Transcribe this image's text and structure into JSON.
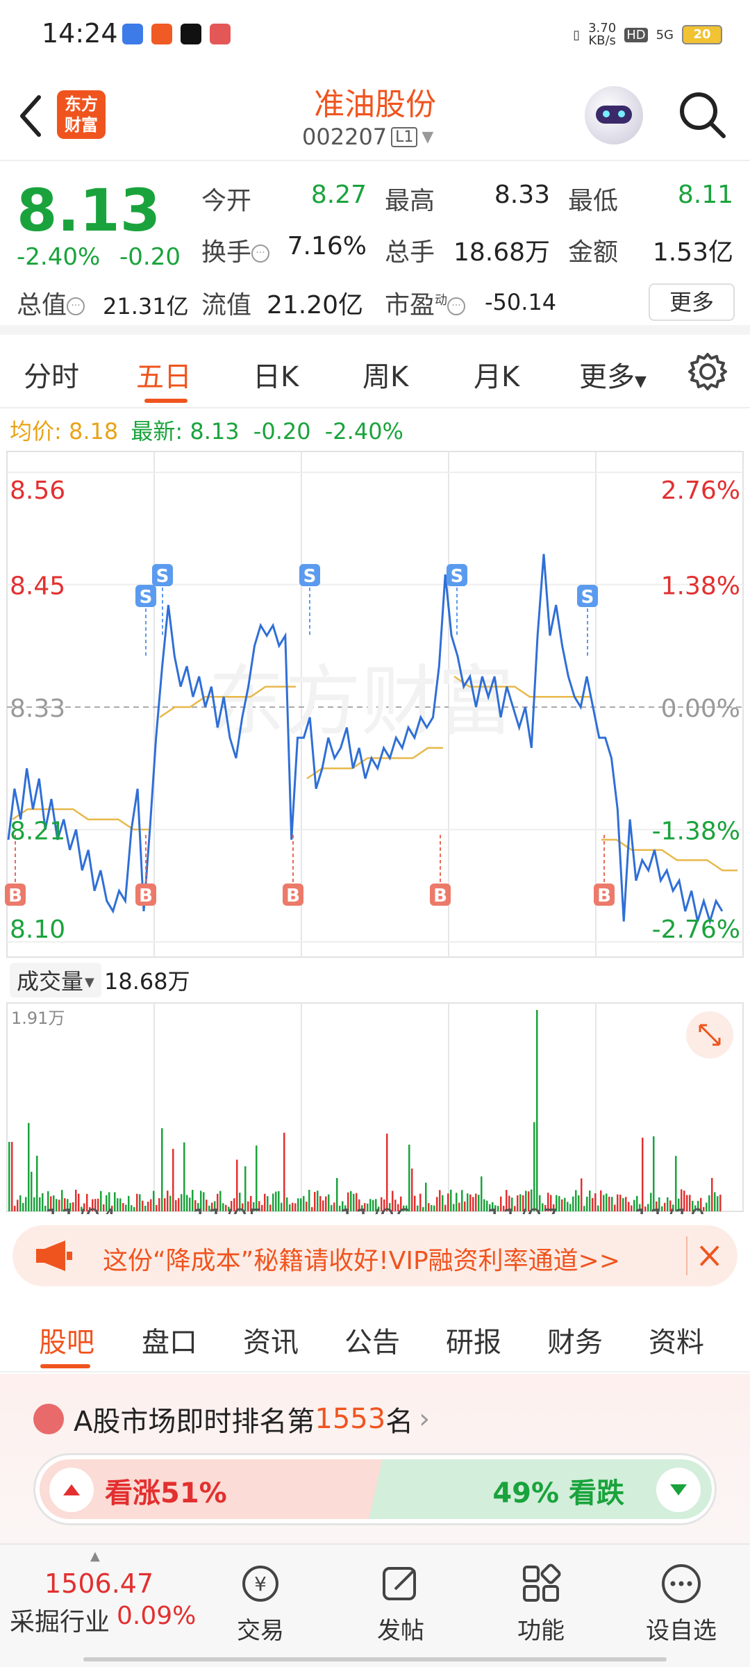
{
  "status_bar": {
    "time": "14:24",
    "net_speed_top": "3.70",
    "net_speed_bottom": "KB/s",
    "hd": "HD",
    "signal": "5G",
    "battery": "20"
  },
  "header": {
    "logo_line1": "东方",
    "logo_line2": "财富",
    "name": "准油股份",
    "code": "002207",
    "level": "L1"
  },
  "quote": {
    "price": "8.13",
    "change_pct": "-2.40%",
    "change_val": "-0.20",
    "open_label": "今开",
    "open": "8.27",
    "high_label": "最高",
    "high": "8.33",
    "low_label": "最低",
    "low": "8.11",
    "turnover_label": "换手",
    "turnover": "7.16%",
    "volume_label": "总手",
    "volume": "18.68万",
    "amount_label": "金额",
    "amount": "1.53亿",
    "mktcap_label": "总值",
    "mktcap": "21.31亿",
    "float_label": "流值",
    "float": "21.20亿",
    "pe_label": "市盈",
    "pe_sup": "动",
    "pe": "-50.14",
    "more": "更多"
  },
  "tabs": {
    "items": [
      "分时",
      "五日",
      "日K",
      "周K",
      "月K",
      "更多"
    ],
    "active": 1
  },
  "avg_line": {
    "avg_label": "均价:",
    "avg": "8.18",
    "latest_label": "最新:",
    "latest": "8.13",
    "change": "-0.20",
    "pct": "-2.40%"
  },
  "chart_data": {
    "type": "line",
    "y_left_ticks": [
      "8.56",
      "8.45",
      "8.33",
      "8.21",
      "8.10"
    ],
    "y_right_ticks": [
      "2.76%",
      "1.38%",
      "0.00%",
      "-1.38%",
      "-2.76%"
    ],
    "ylim": [
      8.1,
      8.56
    ],
    "prev_close": 8.33,
    "days": [
      "11/04",
      "11/05",
      "11/06",
      "11/07",
      "11/10"
    ],
    "watermark": "东方财富",
    "series": [
      {
        "values": [
          8.2,
          8.25,
          8.22,
          8.27,
          8.23,
          8.26,
          8.21,
          8.24,
          8.2,
          8.22,
          8.19,
          8.21,
          8.17,
          8.19,
          8.15,
          8.17,
          8.14,
          8.13,
          8.15,
          8.14,
          8.21,
          8.25,
          8.13,
          8.21,
          8.3,
          8.37,
          8.43,
          8.38,
          8.35,
          8.37,
          8.34,
          8.36,
          8.33,
          8.35,
          8.31,
          8.34,
          8.3,
          8.28,
          8.32,
          8.35,
          8.39,
          8.41,
          8.4,
          8.41,
          8.39,
          8.4,
          8.2,
          8.3,
          8.3,
          8.32,
          8.25,
          8.27,
          8.3,
          8.28,
          8.29,
          8.31,
          8.27,
          8.29,
          8.26,
          8.28,
          8.27,
          8.29,
          8.28,
          8.3,
          8.29,
          8.31,
          8.3,
          8.32,
          8.31,
          8.32,
          8.37,
          8.46,
          8.4,
          8.38,
          8.35,
          8.36,
          8.33,
          8.36,
          8.34,
          8.36,
          8.32,
          8.35,
          8.33,
          8.31,
          8.33,
          8.29,
          8.4,
          8.48,
          8.4,
          8.43,
          8.39,
          8.36,
          8.34,
          8.33,
          8.36,
          8.33,
          8.3,
          8.3,
          8.28,
          8.23,
          8.12,
          8.22,
          8.16,
          8.18,
          8.17,
          8.19,
          8.16,
          8.17,
          8.15,
          8.16,
          8.13,
          8.15,
          8.12,
          8.14,
          8.12,
          8.14,
          8.13
        ]
      },
      {
        "values": [
          8.22,
          8.23,
          8.23,
          8.23,
          8.23,
          8.22,
          8.22,
          8.22,
          8.21,
          8.21,
          8.32,
          8.33,
          8.33,
          8.34,
          8.34,
          8.34,
          8.34,
          8.35,
          8.35,
          8.35,
          8.26,
          8.27,
          8.27,
          8.27,
          8.28,
          8.28,
          8.28,
          8.28,
          8.29,
          8.29,
          8.36,
          8.35,
          8.35,
          8.35,
          8.35,
          8.34,
          8.34,
          8.34,
          8.34,
          8.34,
          8.2,
          8.2,
          8.19,
          8.19,
          8.19,
          8.18,
          8.18,
          8.18,
          8.17,
          8.17
        ]
      }
    ],
    "markers": [
      {
        "type": "B",
        "day": 0
      },
      {
        "type": "S",
        "day": 0
      },
      {
        "type": "B",
        "day": 0
      },
      {
        "type": "S",
        "day": 1
      },
      {
        "type": "B",
        "day": 1
      },
      {
        "type": "S",
        "day": 2
      },
      {
        "type": "B",
        "day": 2
      },
      {
        "type": "S",
        "day": 3
      },
      {
        "type": "S",
        "day": 3
      },
      {
        "type": "B",
        "day": 4
      }
    ],
    "volume_label": "成交量",
    "volume_total": "18.68万",
    "volume_max": "1.91万"
  },
  "ad": {
    "text": "这份“降成本”秘籍请收好!VIP融资利率通道>>"
  },
  "subtabs": {
    "items": [
      "股吧",
      "盘口",
      "资讯",
      "公告",
      "研报",
      "财务",
      "资料"
    ],
    "active": 0
  },
  "rank": {
    "prefix": "A股市场即时排名第",
    "number": "1553",
    "suffix": "名",
    "up": "看涨51%",
    "down": "49% 看跌"
  },
  "bottom_nav": {
    "index_value": "1506.47",
    "index_name": "采掘行业",
    "index_pct": "0.09%",
    "items": [
      "交易",
      "发帖",
      "功能",
      "设自选"
    ]
  }
}
